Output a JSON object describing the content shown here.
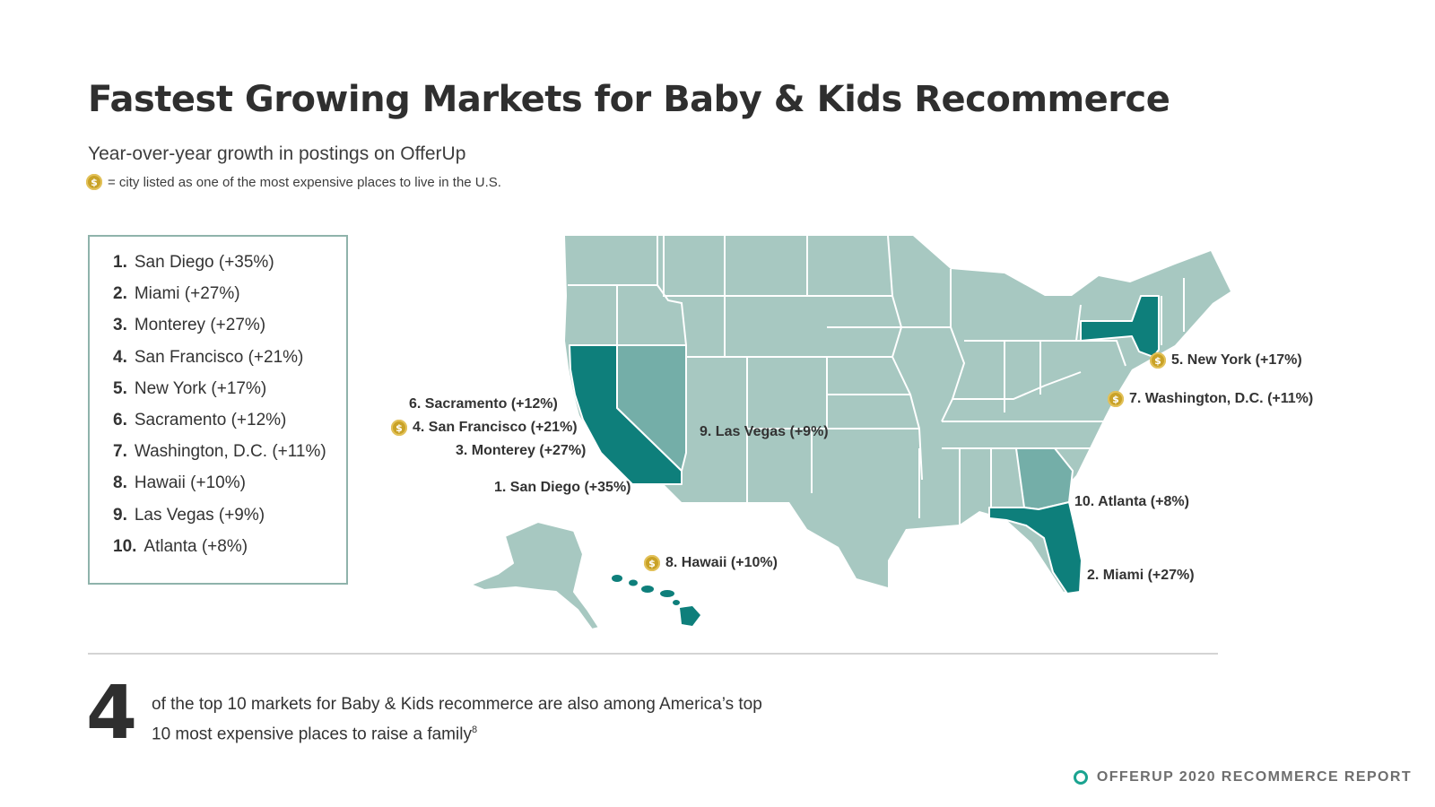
{
  "title": "Fastest Growing Markets for Baby & Kids Recommerce",
  "subtitle": "Year-over-year growth in postings on OfferUp",
  "legend_note": {
    "icon": "dollar-coin-icon",
    "symbol": "$",
    "text": "= city listed as one of the most expensive places to live in the U.S."
  },
  "ranking": [
    {
      "rank": "1.",
      "label": "San Diego (+35%)"
    },
    {
      "rank": "2.",
      "label": "Miami (+27%)"
    },
    {
      "rank": "3.",
      "label": "Monterey (+27%)"
    },
    {
      "rank": "4.",
      "label": "San Francisco (+21%)"
    },
    {
      "rank": "5.",
      "label": "New York (+17%)"
    },
    {
      "rank": "6.",
      "label": "Sacramento (+12%)"
    },
    {
      "rank": "7.",
      "label": "Washington, D.C. (+11%)"
    },
    {
      "rank": "8.",
      "label": "Hawaii (+10%)"
    },
    {
      "rank": "9.",
      "label": "Las Vegas (+9%)"
    },
    {
      "rank": "10.",
      "label": "Atlanta (+8%)"
    }
  ],
  "map_labels": {
    "new_york": "5. New York (+17%)",
    "washington": "7. Washington, D.C. (+11%)",
    "sacramento": "6. Sacramento (+12%)",
    "san_francisco": "4. San Francisco (+21%)",
    "monterey": "3. Monterey (+27%)",
    "san_diego": "1. San Diego (+35%)",
    "las_vegas": "9. Las Vegas (+9%)",
    "hawaii": "8. Hawaii (+10%)",
    "atlanta": "10. Atlanta (+8%)",
    "miami": "2. Miami (+27%)"
  },
  "highlighted_states": {
    "dark": [
      "California",
      "Florida",
      "New York",
      "Hawaii"
    ],
    "medium": [
      "Nevada",
      "Georgia"
    ]
  },
  "colors": {
    "highlight_dark": "#0e7f7b",
    "highlight_medium": "#74aea8",
    "base": "#a7c8c1",
    "coin": "#c9a227",
    "footer_ring": "#1aa390"
  },
  "stat": {
    "number": "4",
    "text": "of the top 10 markets for Baby & Kids recommerce are also among America’s top 10 most expensive places to raise a family",
    "footnote": "8"
  },
  "footer": "OFFERUP 2020 RECOMMERCE REPORT"
}
